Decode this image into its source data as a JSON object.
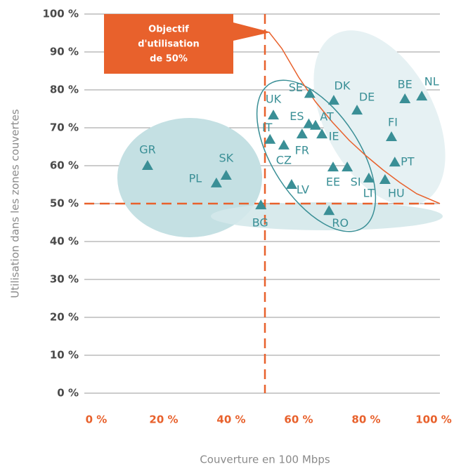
{
  "chart_data": {
    "type": "scatter",
    "annotation": [
      "Objectif",
      "d'utilisation",
      "de 50%"
    ],
    "x_label": "Couverture en 100 Mbps",
    "y_label": "Utilisation dans les zones couvertes",
    "color": "#3a8f96",
    "labels": [
      "GR",
      "PL",
      "SK",
      "BG",
      "RO",
      "LV",
      "UK",
      "IT",
      "CZ",
      "SE",
      "ES",
      "AT",
      "FR",
      "IE",
      "DK",
      "DE",
      "EE",
      "SI",
      "LT",
      "HU",
      "PT",
      "FI",
      "BE",
      "NL"
    ],
    "x": [
      15.2,
      35.6,
      38.5,
      48.8,
      69,
      57.9,
      52.5,
      51.5,
      55.6,
      63.3,
      63,
      65,
      61,
      66.9,
      70.4,
      77.3,
      70.2,
      74.4,
      80.8,
      85.6,
      88.5,
      87.5,
      91.5,
      96.5
    ],
    "values": [
      60,
      55.4,
      57.4,
      49.6,
      48.1,
      55,
      73.3,
      66.9,
      65.4,
      79,
      71,
      70.6,
      68.3,
      68.3,
      77.2,
      74.6,
      59.6,
      59.6,
      56.7,
      56.3,
      60.9,
      67.6,
      77.6,
      78.3
    ],
    "xlim": [
      0,
      100
    ],
    "ylim": [
      0,
      100
    ],
    "xticks": [
      {
        "value": 0,
        "label": "0 %"
      },
      {
        "value": 20,
        "label": "20 %"
      },
      {
        "value": 40,
        "label": "40 %"
      },
      {
        "value": 60,
        "label": "60 %"
      },
      {
        "value": 80,
        "label": "80 %"
      },
      {
        "value": 100,
        "label": "100 %"
      }
    ],
    "yticks": [
      {
        "value": 0,
        "label": "0 %"
      },
      {
        "value": 10,
        "label": "10 %"
      },
      {
        "value": 20,
        "label": "20 %"
      },
      {
        "value": 30,
        "label": "30 %"
      },
      {
        "value": 40,
        "label": "40 %"
      },
      {
        "value": 50,
        "label": "50 %"
      },
      {
        "value": 60,
        "label": "60 %"
      },
      {
        "value": 70,
        "label": "70 %"
      },
      {
        "value": 80,
        "label": "80 %"
      },
      {
        "value": 90,
        "label": "90 %"
      },
      {
        "value": 100,
        "label": "100 %"
      }
    ],
    "grid": true
  }
}
